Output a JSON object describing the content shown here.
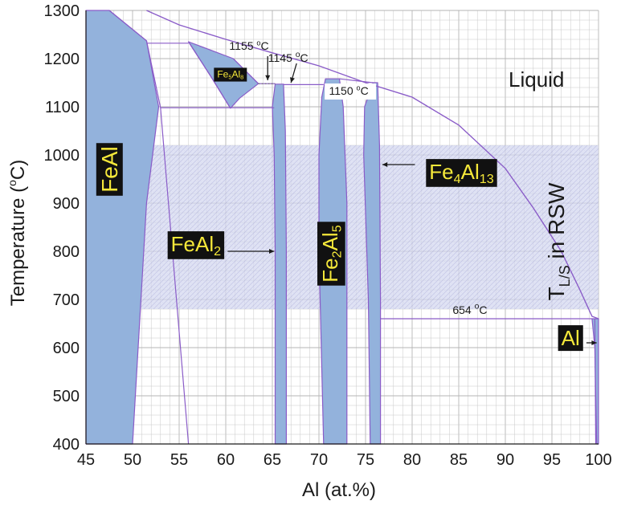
{
  "chart_data": {
    "type": "phase-diagram",
    "title": "",
    "xlabel": "Al (at.%)",
    "ylabel": "Temperature (°C)",
    "ylabel_parts": {
      "main": "Temperature (",
      "sup": "o",
      "unit": "C)"
    },
    "xlim": [
      45,
      100
    ],
    "ylim": [
      400,
      1300
    ],
    "x_ticks": [
      45,
      50,
      55,
      60,
      65,
      70,
      75,
      80,
      85,
      90,
      95,
      100
    ],
    "y_ticks": [
      400,
      500,
      600,
      700,
      800,
      900,
      1000,
      1100,
      1200,
      1300
    ],
    "grid": true,
    "rsw_band": {
      "label_main": "T",
      "label_sub": "L/S",
      "label_rest": " in RSW",
      "y_range": [
        680,
        1020
      ],
      "color": "#c9cdea"
    },
    "colors": {
      "phase_fill": "#93b2dc",
      "boundary_line": "#8a5cc8",
      "label_bg": "#111111",
      "label_text": "#f5e83a",
      "grid": "#c8c8c8"
    },
    "liquidus": [
      [
        51.5,
        1300
      ],
      [
        55,
        1270
      ],
      [
        60,
        1240
      ],
      [
        65,
        1212
      ],
      [
        70,
        1185
      ],
      [
        75,
        1150
      ],
      [
        80,
        1120
      ],
      [
        85,
        1062
      ],
      [
        90,
        972
      ],
      [
        93,
        890
      ],
      [
        96,
        800
      ],
      [
        98,
        720
      ],
      [
        99.3,
        665
      ],
      [
        100,
        660
      ]
    ],
    "phases": [
      {
        "name": "FeAl",
        "parts": [
          "FeAl"
        ],
        "region": [
          [
            45,
            1300
          ],
          [
            47.5,
            1300
          ],
          [
            51.5,
            1237
          ],
          [
            52.8,
            1100
          ],
          [
            51.5,
            900
          ],
          [
            50,
            400
          ],
          [
            45,
            400
          ]
        ]
      },
      {
        "name": "Fe5Al8",
        "parts": [
          "Fe",
          "5",
          "Al",
          "8"
        ],
        "region": [
          [
            56,
            1235
          ],
          [
            60.8,
            1200
          ],
          [
            63.5,
            1148
          ],
          [
            61.5,
            1118
          ],
          [
            60.5,
            1097
          ],
          [
            58.5,
            1160
          ]
        ]
      },
      {
        "name": "FeAl2",
        "parts": [
          "FeAl",
          "2"
        ],
        "region": [
          [
            65.3,
            1147
          ],
          [
            66.2,
            1147
          ],
          [
            66.4,
            1050
          ],
          [
            66.5,
            800
          ],
          [
            66.5,
            400
          ],
          [
            65.3,
            400
          ],
          [
            65.3,
            800
          ],
          [
            65.2,
            1000
          ],
          [
            65.0,
            1100
          ]
        ]
      },
      {
        "name": "Fe2Al5",
        "parts": [
          "Fe",
          "2",
          "Al",
          "5"
        ],
        "region": [
          [
            70.7,
            1158
          ],
          [
            72.2,
            1158
          ],
          [
            72.6,
            1100
          ],
          [
            73.0,
            900
          ],
          [
            73.0,
            400
          ],
          [
            70.5,
            400
          ],
          [
            70.0,
            800
          ],
          [
            70.0,
            1000
          ],
          [
            70.3,
            1120
          ]
        ]
      },
      {
        "name": "Fe4Al13",
        "parts": [
          "Fe",
          "4",
          "Al",
          "13"
        ],
        "region": [
          [
            75.8,
            1150
          ],
          [
            76.3,
            1150
          ],
          [
            76.5,
            1020
          ],
          [
            76.6,
            700
          ],
          [
            76.6,
            400
          ],
          [
            75.5,
            400
          ],
          [
            75.3,
            700
          ],
          [
            74.8,
            1000
          ],
          [
            74.9,
            1100
          ]
        ]
      },
      {
        "name": "Al",
        "parts": [
          "Al"
        ],
        "region": [
          [
            99.3,
            660
          ],
          [
            100,
            660
          ],
          [
            100,
            400
          ],
          [
            99.8,
            400
          ],
          [
            99.6,
            600
          ]
        ]
      }
    ],
    "annotations": [
      {
        "id": "t1155",
        "x": 64.5,
        "y": 1155,
        "text": "1155 °C",
        "num": "1155 ",
        "sup": "o",
        "unit": "C"
      },
      {
        "id": "t1145",
        "x": 67.0,
        "y": 1145,
        "text": "1145 °C",
        "num": "1145 ",
        "sup": "o",
        "unit": "C"
      },
      {
        "id": "t1150",
        "x": 75.8,
        "y": 1150,
        "text": "1150 °C",
        "num": "1150 ",
        "sup": "o",
        "unit": "C"
      },
      {
        "id": "t654",
        "x": 76.5,
        "y": 660,
        "text": "654 °C",
        "num": "654 ",
        "sup": "o",
        "unit": "C"
      }
    ],
    "region_labels": {
      "liquid": "Liquid"
    }
  }
}
